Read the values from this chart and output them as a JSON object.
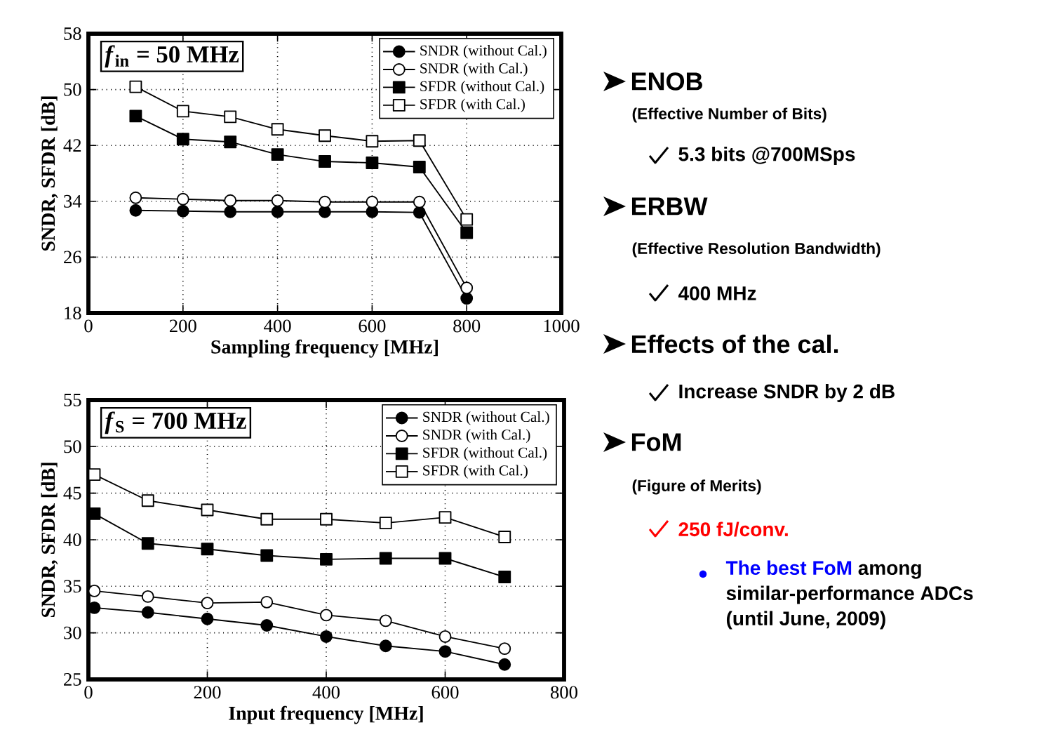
{
  "chart_data": [
    {
      "type": "line",
      "annotations": [
        "*f*$_{in}$ = 50 MHz"
      ],
      "xlabel": "Sampling frequency [MHz]",
      "ylabel": "SNDR, SFDR [dB]",
      "x": [
        100,
        200,
        300,
        400,
        500,
        600,
        700,
        800
      ],
      "series": [
        {
          "name": "SNDR (without Cal.)",
          "color": "#000000",
          "marker": "circle",
          "values": [
            32.7,
            32.6,
            32.5,
            32.5,
            32.5,
            32.5,
            32.4,
            20.1
          ]
        },
        {
          "name": "SNDR (with Cal.)",
          "color": "#000000",
          "marker": "circle",
          "values": [
            34.5,
            34.3,
            34.1,
            34.1,
            33.9,
            33.9,
            33.9,
            21.6
          ]
        },
        {
          "name": "SFDR (without Cal.)",
          "color": "#000000",
          "marker": "square",
          "values": [
            46.2,
            42.9,
            42.5,
            40.7,
            39.7,
            39.5,
            38.9,
            29.5
          ]
        },
        {
          "name": "SFDR (with Cal.)",
          "color": "#000000",
          "marker": "square",
          "values": [
            50.4,
            46.9,
            46.1,
            44.3,
            43.4,
            42.6,
            42.7,
            31.4
          ]
        }
      ],
      "xlim": [
        0,
        1000
      ],
      "ylim": [
        18,
        58
      ],
      "xticks": [
        0,
        200,
        400,
        600,
        800,
        1000
      ],
      "yticks": [
        18,
        26,
        34,
        42,
        50,
        58
      ],
      "grid": true,
      "legend": "top right"
    },
    {
      "type": "line",
      "annotations": [
        "*f*$_{S}$ = 700 MHz"
      ],
      "xlabel": "Input frequency [MHz]",
      "ylabel": "SNDR, SFDR [dB]",
      "x": [
        10,
        100,
        200,
        300,
        400,
        500,
        600,
        700
      ],
      "series": [
        {
          "name": "SNDR (without Cal.)",
          "color": "#000000",
          "marker": "circle",
          "values": [
            32.7,
            32.2,
            31.5,
            30.8,
            29.6,
            28.6,
            28.0,
            26.6
          ]
        },
        {
          "name": "SNDR (with Cal.)",
          "color": "#000000",
          "marker": "circle",
          "values": [
            34.5,
            33.9,
            33.2,
            33.3,
            31.9,
            31.3,
            29.6,
            28.3
          ]
        },
        {
          "name": "SFDR (without Cal.)",
          "color": "#000000",
          "marker": "square",
          "values": [
            42.8,
            39.6,
            39.0,
            38.3,
            37.9,
            38.0,
            38.0,
            36.0
          ]
        },
        {
          "name": "SFDR (with Cal.)",
          "color": "#000000",
          "marker": "square",
          "values": [
            47.0,
            44.2,
            43.2,
            42.2,
            42.2,
            41.8,
            42.4,
            40.3
          ]
        }
      ],
      "xlim": [
        0,
        800
      ],
      "ylim": [
        25,
        55
      ],
      "xticks": [
        0,
        200,
        400,
        600,
        800
      ],
      "yticks": [
        25,
        30,
        35,
        40,
        45,
        50,
        55
      ],
      "grid": true,
      "legend": "top right"
    },
    {
      "type": "other",
      "annotations": [
        "ENOB",
        "(Effective Number of Bits)",
        "5.3 bits @700MSps",
        "ERBW",
        "(Effective Resolution Bandwidth)",
        "400 MHz",
        "Effects of the cal.",
        "Increase SNDR by 2 dB",
        "FoM",
        "(Figure of Merits)",
        "250 fJ/conv.",
        "The best FoM",
        "among similar-performance ADCs",
        "(until June, 2009)"
      ]
    }
  ]
}
